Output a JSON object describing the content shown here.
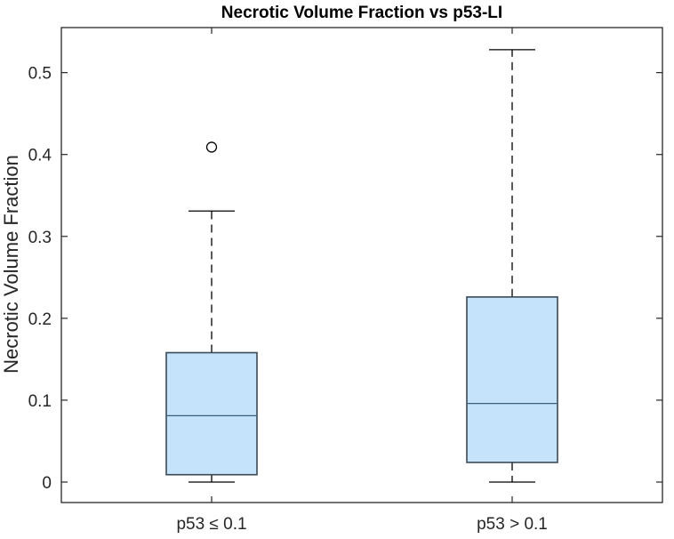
{
  "chart_data": {
    "type": "box",
    "title": "Necrotic Volume Fraction vs p53-LI",
    "xlabel": "",
    "ylabel": "Necrotic Volume Fraction",
    "ylim": [
      -0.025,
      0.555
    ],
    "yticks": [
      0,
      0.1,
      0.2,
      0.3,
      0.4,
      0.5
    ],
    "ytick_labels": [
      "0",
      "0.1",
      "0.2",
      "0.3",
      "0.4",
      "0.5"
    ],
    "categories": [
      "p53 ≤ 0.1",
      "p53 > 0.1"
    ],
    "series": [
      {
        "name": "p53 ≤ 0.1",
        "whisker_low": 0.0,
        "q1": 0.009,
        "median": 0.081,
        "q3": 0.158,
        "whisker_high": 0.331,
        "outliers": [
          0.409
        ]
      },
      {
        "name": "p53 > 0.1",
        "whisker_low": 0.0,
        "q1": 0.024,
        "median": 0.096,
        "q3": 0.226,
        "whisker_high": 0.528,
        "outliers": []
      }
    ],
    "colors": {
      "box_fill": "#c5e4fb",
      "box_edge": "#3a4a56",
      "median_line": "#3a5f7d",
      "whisker": "#000000",
      "axes": "#262626"
    },
    "grid": false,
    "legend": "none"
  }
}
